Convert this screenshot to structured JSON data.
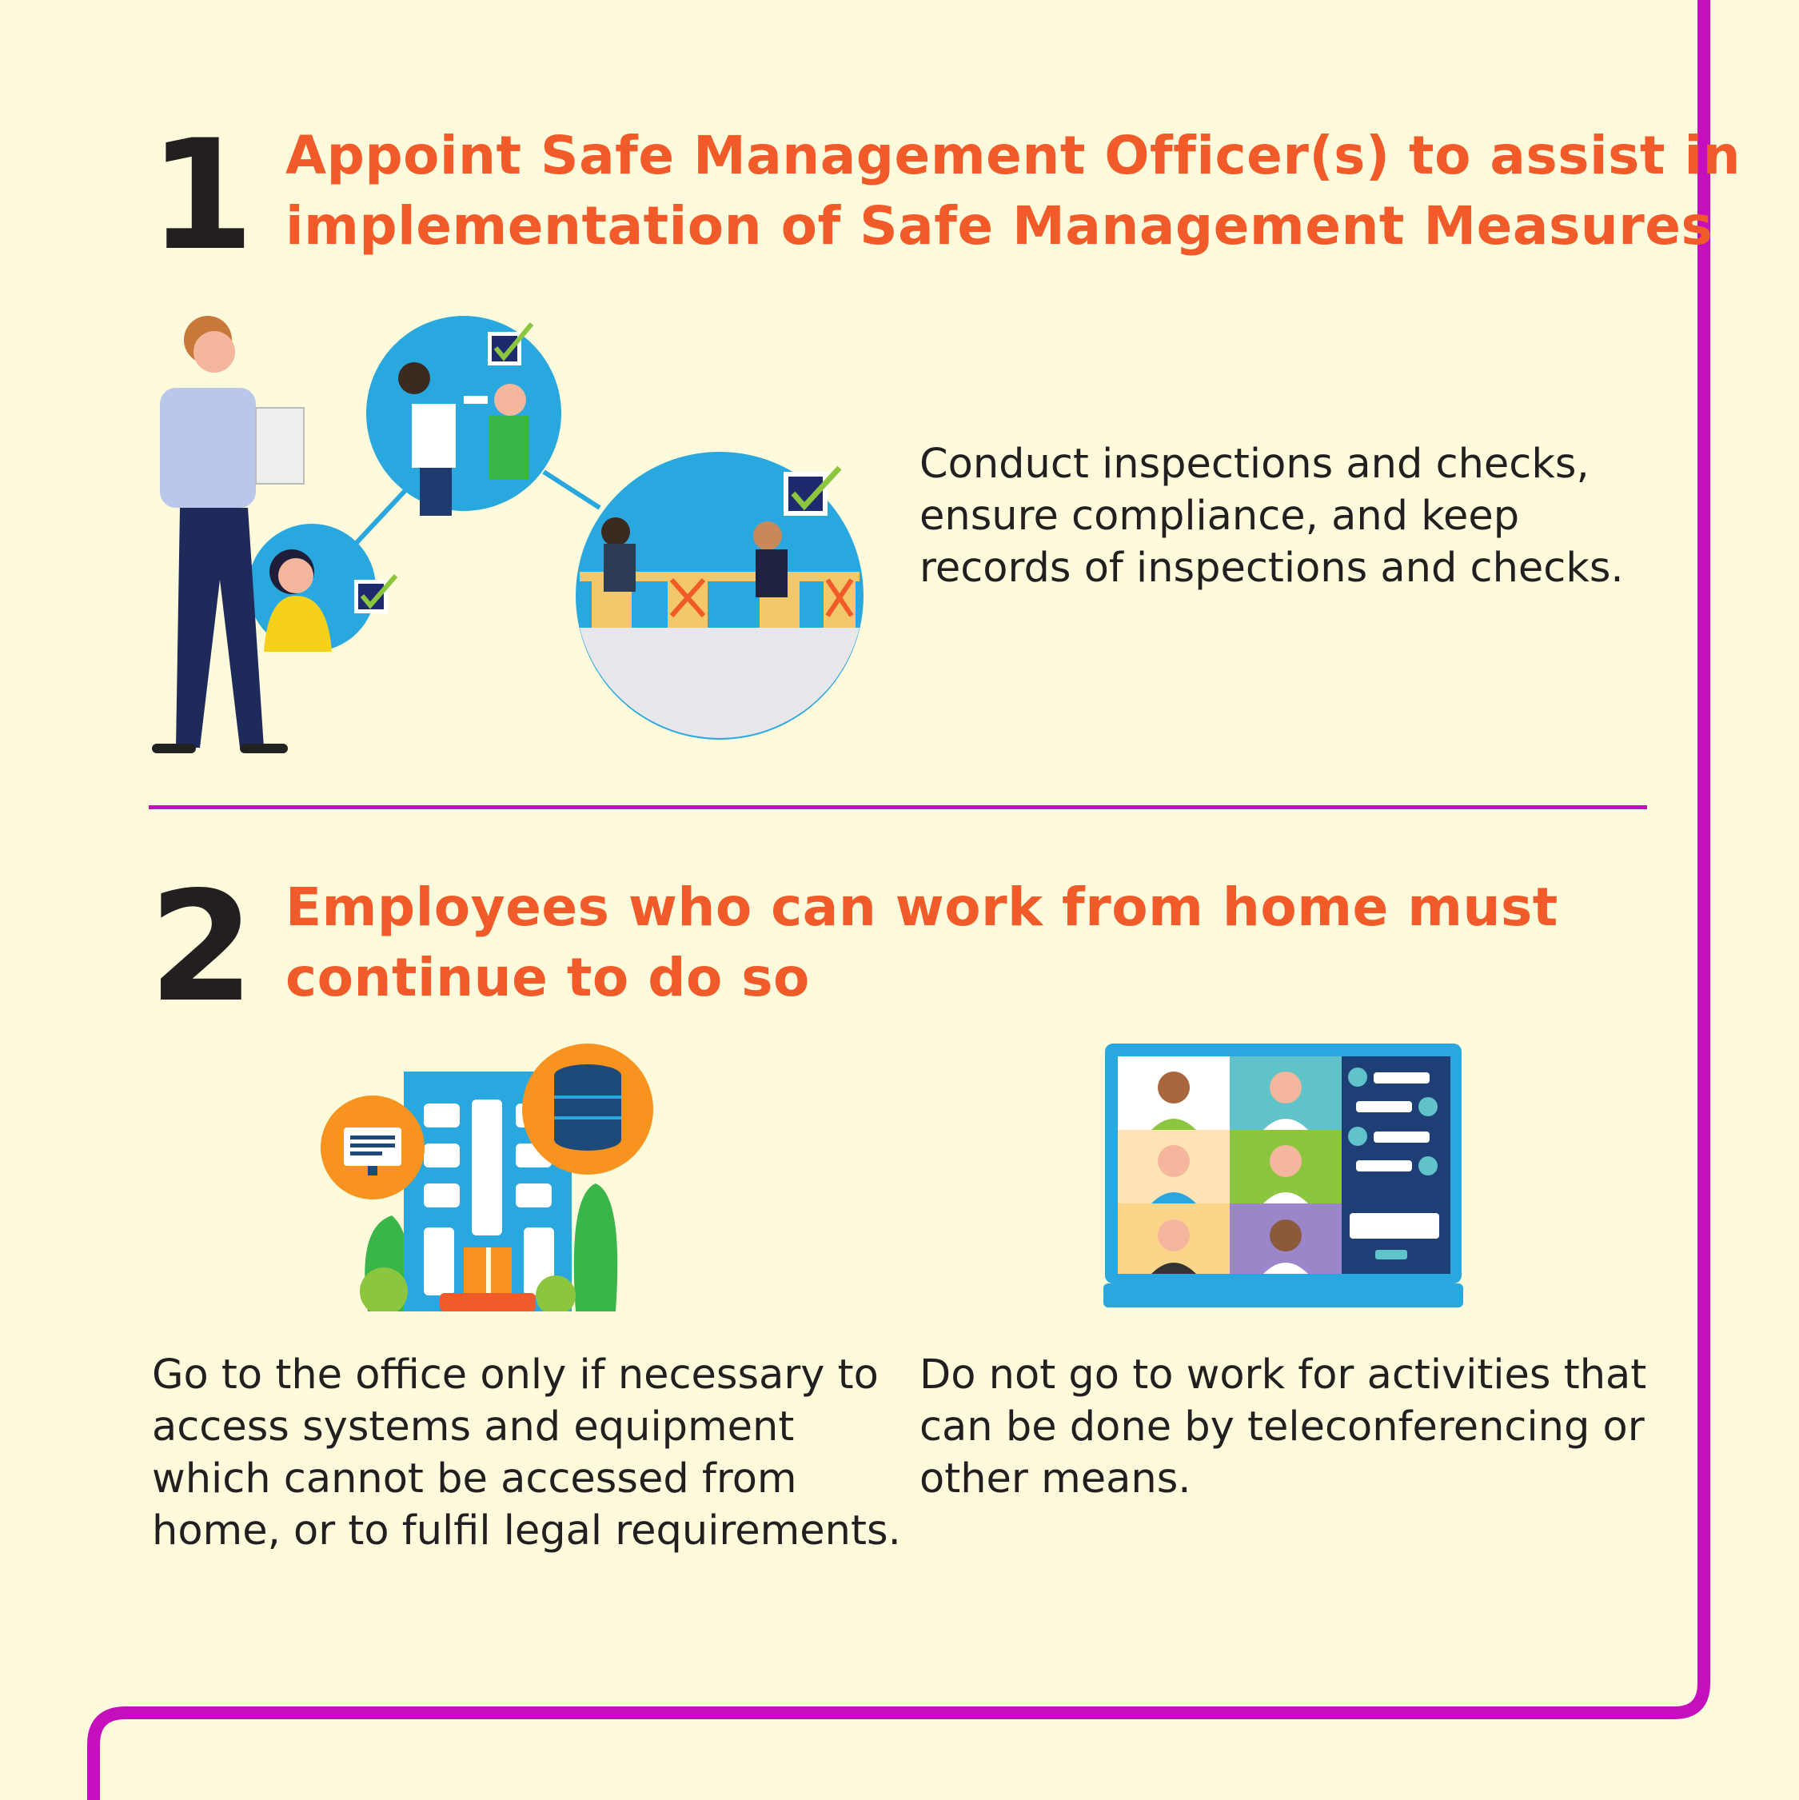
{
  "colors": {
    "background": "#fdfbdb",
    "accent_frame": "#c50fbd",
    "heading": "#f15a29",
    "body_text": "#231f20"
  },
  "section1": {
    "number": "1",
    "heading_line1": "Appoint Safe Management Officer(s) to assist in",
    "heading_line2": "implementation of Safe Management Measures",
    "text_line1": "Conduct inspections and checks,",
    "text_line2": "ensure compliance, and keep",
    "text_line3": "records of inspections and checks.",
    "illustration": "safe-management-officer-inspection-illustration"
  },
  "section2": {
    "number": "2",
    "heading_line1": "Employees who can work from home must",
    "heading_line2": "continue to do so",
    "left_text_line1": "Go to the office only if necessary to",
    "left_text_line2": "access systems and equipment",
    "left_text_line3": "which cannot be accessed from",
    "left_text_line4": "home, or to fulfil legal requirements.",
    "right_text_line1": "Do not go to work for activities that",
    "right_text_line2": "can be done by teleconferencing or",
    "right_text_line3": "other means.",
    "left_illustration": "office-building-icon",
    "right_illustration": "video-conference-laptop-icon"
  }
}
